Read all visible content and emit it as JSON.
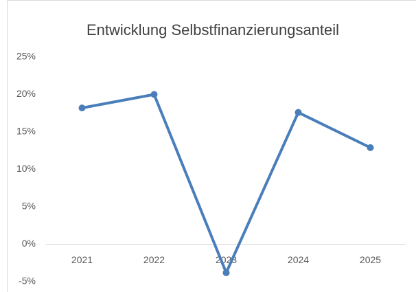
{
  "chart_data": {
    "type": "line",
    "title": "Entwicklung Selbstfinanzierungsanteil",
    "categories": [
      "2021",
      "2022",
      "2023",
      "2024",
      "2025"
    ],
    "series": [
      {
        "name": "Selbstfinanzierungsanteil",
        "color": "#4a7ebb",
        "values": [
          18.2,
          20.0,
          -3.8,
          17.6,
          12.9
        ]
      }
    ],
    "ylim": [
      -5,
      25
    ],
    "yticks": [
      {
        "value": -5,
        "label": "-5%"
      },
      {
        "value": 0,
        "label": "0%"
      },
      {
        "value": 5,
        "label": "5%"
      },
      {
        "value": 10,
        "label": "10%"
      },
      {
        "value": 15,
        "label": "15%"
      },
      {
        "value": 20,
        "label": "20%"
      },
      {
        "value": 25,
        "label": "25%"
      }
    ],
    "grid": false
  }
}
